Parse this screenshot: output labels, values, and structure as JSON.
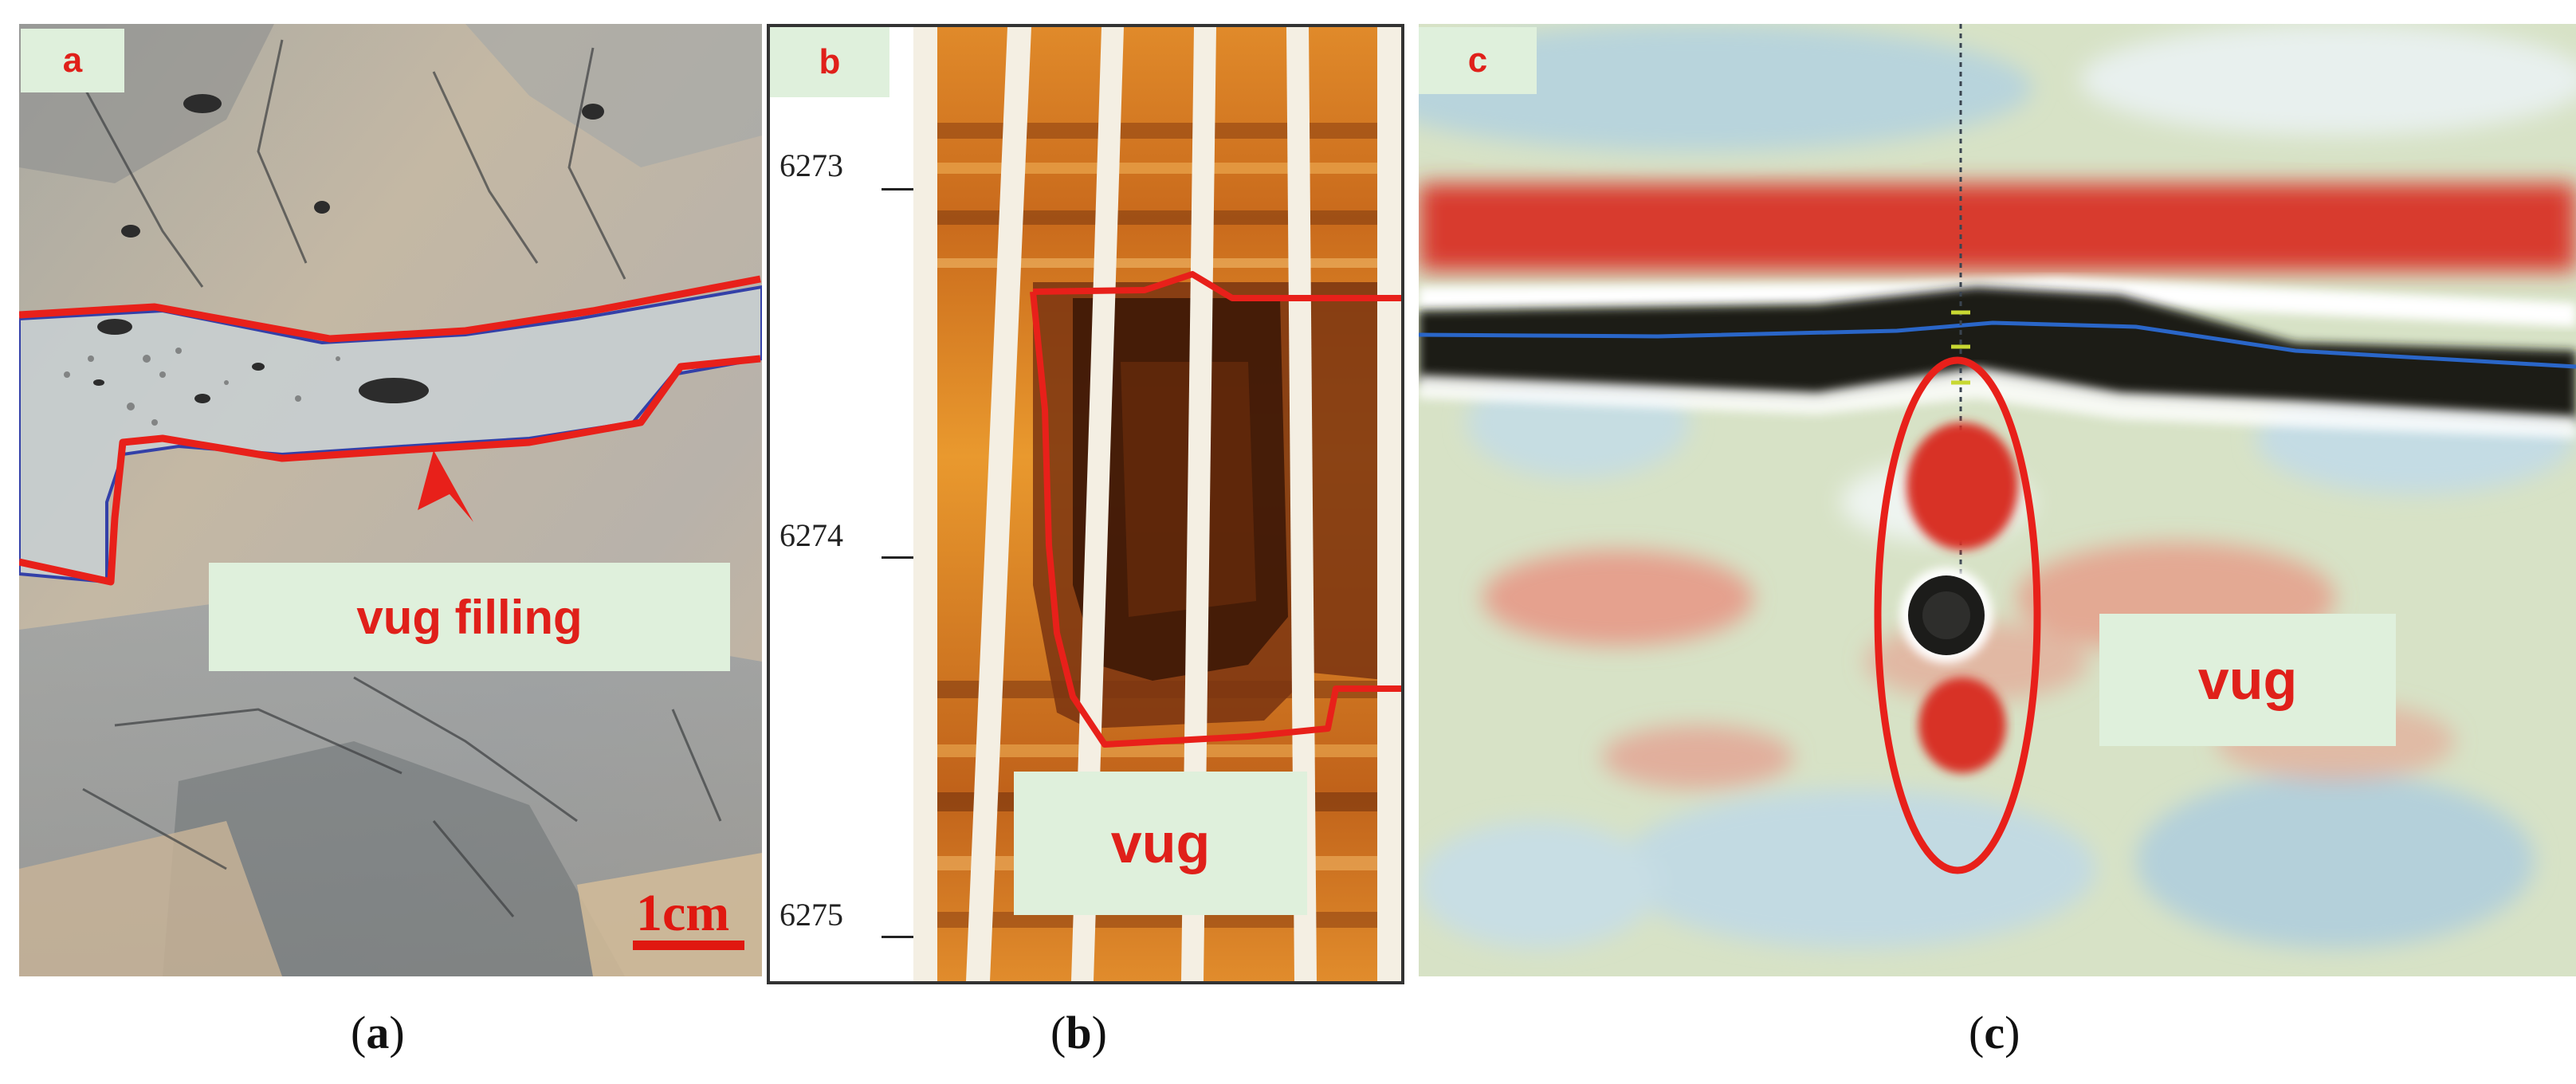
{
  "panels": {
    "a": {
      "tag": "a",
      "callout": "vug filling",
      "scale_label": "1cm",
      "caption_letter": "a"
    },
    "b": {
      "tag": "b",
      "callout": "vug",
      "depths": [
        "6273",
        "6274",
        "6275"
      ],
      "caption_letter": "b"
    },
    "c": {
      "tag": "c",
      "callout": "vug",
      "caption_letter": "c"
    }
  },
  "colors": {
    "outline": "#e8201a",
    "tag_bg": "#dff0dc",
    "tag_text": "#e0201a",
    "blue_line": "#2a66c8"
  }
}
